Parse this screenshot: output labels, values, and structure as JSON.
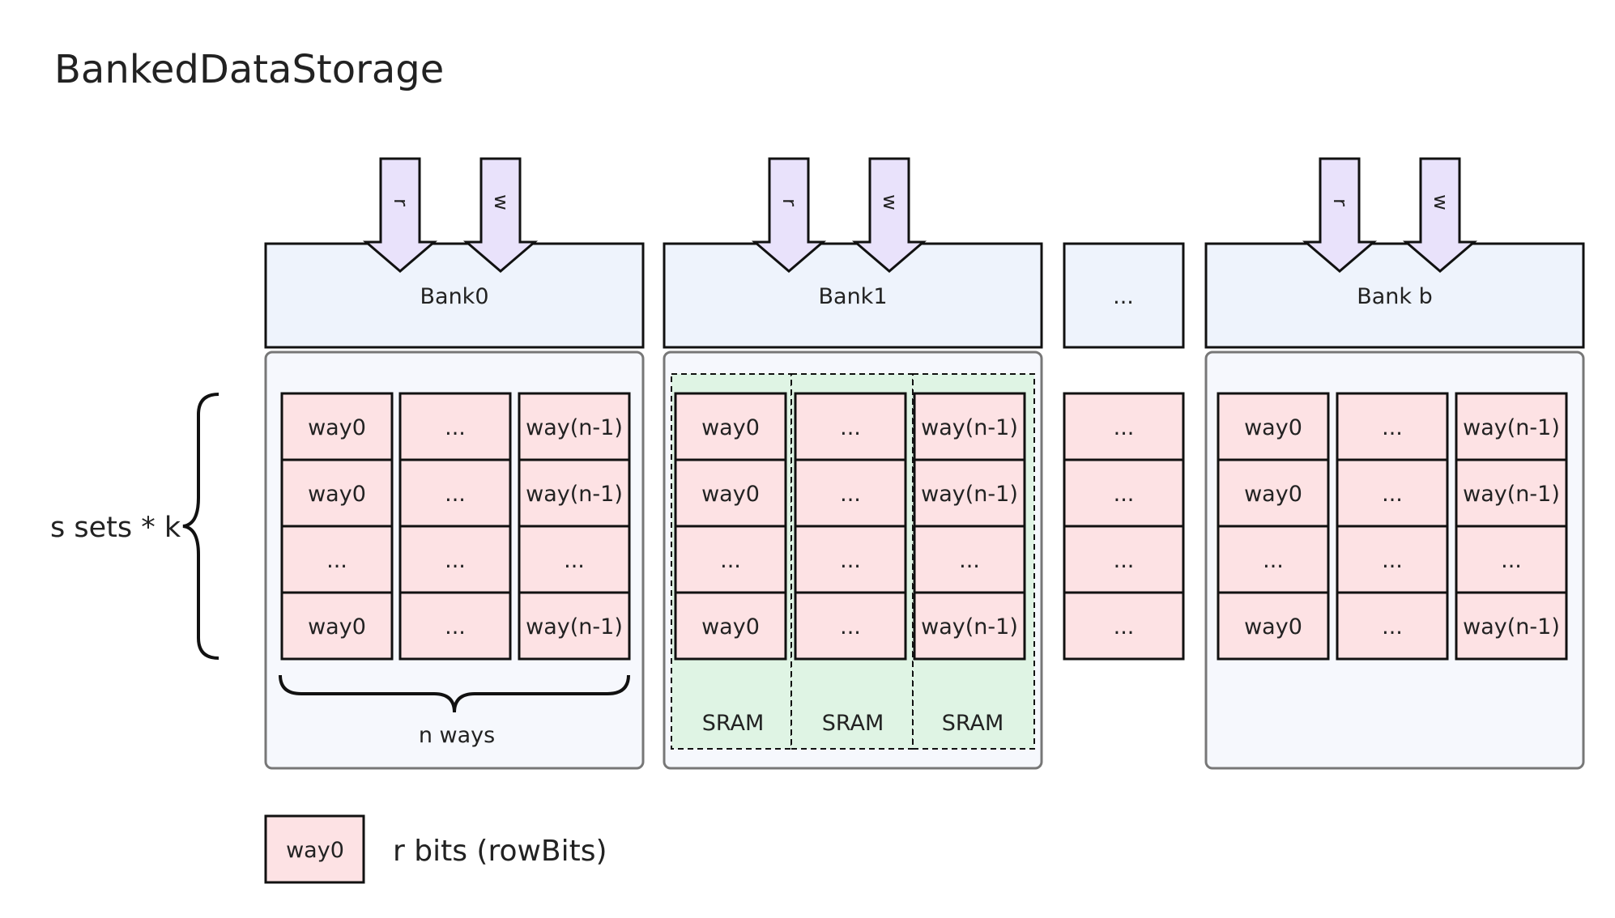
{
  "title": "BankedDataStorage",
  "port_labels": {
    "read": "r",
    "write": "w"
  },
  "banks": [
    {
      "label": "Bank0",
      "columns": [
        "way0",
        "...",
        "way(n-1)"
      ],
      "rows": [
        [
          "way0",
          "...",
          "way(n-1)"
        ],
        [
          "way0",
          "...",
          "way(n-1)"
        ],
        [
          "...",
          "...",
          "..."
        ],
        [
          "way0",
          "...",
          "way(n-1)"
        ]
      ],
      "footer": "n ways",
      "has_ports": true,
      "sram": false
    },
    {
      "label": "Bank1",
      "rows": [
        [
          "way0",
          "...",
          "way(n-1)"
        ],
        [
          "way0",
          "...",
          "way(n-1)"
        ],
        [
          "...",
          "...",
          "..."
        ],
        [
          "way0",
          "...",
          "way(n-1)"
        ]
      ],
      "sram_labels": [
        "SRAM",
        "SRAM",
        "SRAM"
      ],
      "has_ports": true,
      "sram": true
    },
    {
      "label": "...",
      "rows": [
        [
          "..."
        ],
        [
          "..."
        ],
        [
          "..."
        ],
        [
          "..."
        ]
      ],
      "has_ports": false,
      "sram": false
    },
    {
      "label": "Bank b",
      "rows": [
        [
          "way0",
          "...",
          "way(n-1)"
        ],
        [
          "way0",
          "...",
          "way(n-1)"
        ],
        [
          "...",
          "...",
          "..."
        ],
        [
          "way0",
          "...",
          "way(n-1)"
        ]
      ],
      "has_ports": true,
      "sram": false
    }
  ],
  "side_label": "s sets * k",
  "legend": {
    "cell": "way0",
    "text": "r bits (rowBits)"
  },
  "colors": {
    "header_fill": "#eef3fc",
    "container_fill": "#f6f8fd",
    "cell_fill": "#fde2e4",
    "sram_fill": "#dff4e4",
    "arrow_fill": "#e9e2fb",
    "stroke": "#111111",
    "container_stroke": "#777777"
  }
}
